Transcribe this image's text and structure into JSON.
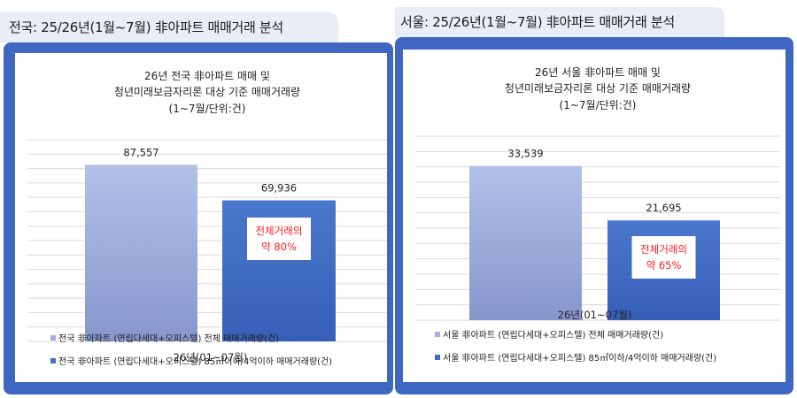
{
  "panels": [
    {
      "tab_title": "전국: 25/26년(1월~7월) 非아파트 매매거래 분석",
      "chart_data": {
        "type": "bar",
        "title": [
          "26년 전국 非아파트 매매 및",
          "청년미래보금자리론  대상 기준 매매거래량",
          "(1~7월/단위:건)"
        ],
        "categories": [
          "26년(01~07월)"
        ],
        "series": [
          {
            "name": "전국 非아파트 (연립다세대+오피스텔) 전체 매매거래량(건)",
            "values": [
              87557
            ],
            "label": "87,557",
            "color": "#a3b1de"
          },
          {
            "name": "전국 非아파트 (연립다세대+오피스텔) 85㎡이하/4억이하 매매거래량(건)",
            "values": [
              69936
            ],
            "label": "69,936",
            "color": "#4470c4"
          }
        ],
        "ylim": [
          0,
          100000
        ],
        "grid": true,
        "legend": "bottom-left",
        "annotation": [
          "전체거래의",
          "약 80%"
        ],
        "annotation_color": "#ff1a1a"
      }
    },
    {
      "tab_title": "서울: 25/26년(1월~7월) 非아파트 매매거래 분석",
      "chart_data": {
        "type": "bar",
        "title": [
          "26년 서울 非아파트 매매 및",
          "청년미래보금자리론  대상 기준 매매거래량",
          "(1~7월/단위:건)"
        ],
        "categories": [
          "26년(01~07월)"
        ],
        "series": [
          {
            "name": "서울 非아파트 (연립다세대+오피스텔) 전체 매매거래량(건)",
            "values": [
              33539
            ],
            "label": "33,539",
            "color": "#a3b1de"
          },
          {
            "name": "서울 非아파트 (연립다세대+오피스텔) 85㎡이하/4억이하 매매거래량(건)",
            "values": [
              21695
            ],
            "label": "21,695",
            "color": "#4470c4"
          }
        ],
        "ylim": [
          0,
          40000
        ],
        "grid": true,
        "legend": "bottom-left",
        "annotation": [
          "전체거래의",
          "약 65%"
        ],
        "annotation_color": "#ff1a1a"
      }
    }
  ]
}
